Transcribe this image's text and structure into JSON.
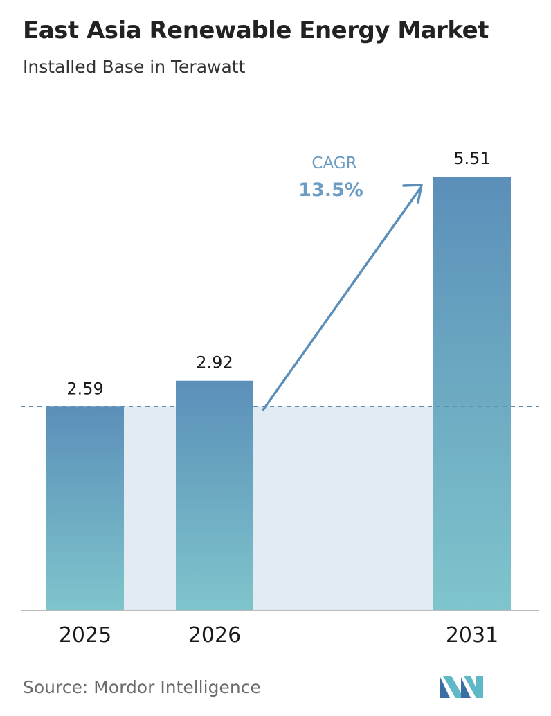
{
  "title": "East Asia Renewable Energy Market",
  "subtitle": "Installed Base in Terawatt",
  "source": "Source: Mordor Intelligence",
  "logo_icon": "mordor-intelligence-logo",
  "colors": {
    "bar_top": "#5b8fb9",
    "bar_bottom": "#7fc5cc",
    "band": "#e2eaf2",
    "dashed_line": "#5b8fb9",
    "arrow": "#5b8fb9",
    "cagr_text": "#6b9cc3",
    "axis": "#bbbbbb"
  },
  "annotation": {
    "label": "CAGR",
    "value": "13.5%"
  },
  "chart_data": {
    "type": "bar",
    "categories": [
      "2025",
      "2026",
      "2031"
    ],
    "values": [
      2.59,
      2.92,
      5.51
    ],
    "data_labels": [
      "2.59",
      "2.92",
      "5.51"
    ],
    "title": "East Asia Renewable Energy Market",
    "subtitle": "Installed Base in Terawatt",
    "xlabel": "",
    "ylabel": "",
    "ylim": [
      0,
      5.51
    ],
    "grid": false,
    "legend": "none",
    "reference_line": 2.59
  }
}
